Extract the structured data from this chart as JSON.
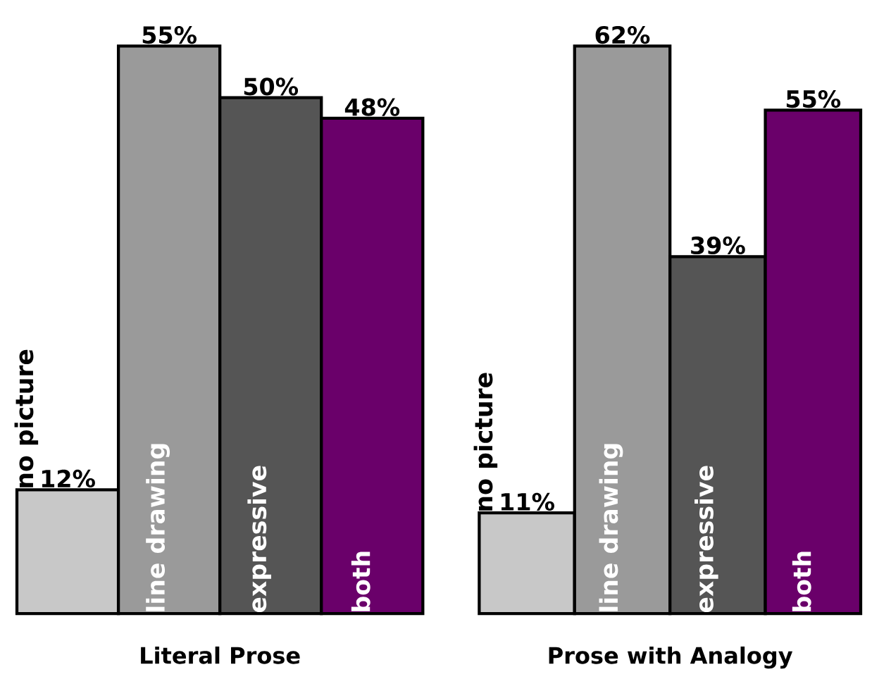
{
  "chart_data": [
    {
      "type": "bar",
      "xlabel": "Literal Prose",
      "categories": [
        "no picture",
        "line drawing",
        "expressive",
        "both"
      ],
      "values": [
        12,
        55,
        50,
        48
      ],
      "value_labels": [
        "12%",
        "55%",
        "50%",
        "48%"
      ],
      "colors": [
        "#c8c8c8",
        "#9a9a9a",
        "#555555",
        "#6a006a"
      ]
    },
    {
      "type": "bar",
      "xlabel": "Prose with Analogy",
      "categories": [
        "no picture",
        "line drawing",
        "expressive",
        "both"
      ],
      "values": [
        11,
        62,
        39,
        55
      ],
      "value_labels": [
        "11%",
        "62%",
        "39%",
        "55%"
      ],
      "colors": [
        "#c8c8c8",
        "#9a9a9a",
        "#555555",
        "#6a006a"
      ]
    }
  ]
}
